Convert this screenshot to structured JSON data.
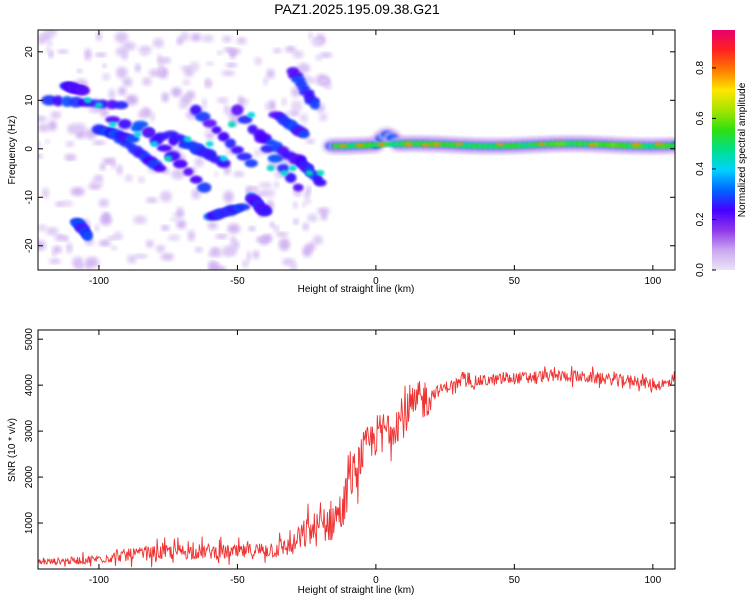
{
  "title": "PAZ1.2025.195.09.38.G21",
  "chart_data": [
    {
      "type": "heatmap",
      "xlabel": "Height of straight line (km)",
      "ylabel": "Frequency (Hz)",
      "xlim": [
        -122,
        108
      ],
      "ylim": [
        -25,
        24.5
      ],
      "xticks": [
        -100,
        -50,
        0,
        50,
        100
      ],
      "yticks": [
        -20,
        -10,
        0,
        10,
        20
      ],
      "colorbar": {
        "label": "Normalized spectral amplitude",
        "range": [
          0.0,
          0.95
        ],
        "ticks": [
          0.0,
          0.2,
          0.4,
          0.6,
          0.8
        ],
        "colors": [
          "#ece3f7",
          "#c9a6f0",
          "#8f36ea",
          "#4400ff",
          "#0066ff",
          "#00d2ff",
          "#00e08c",
          "#2fe010",
          "#a6e400",
          "#ffe600",
          "#ff7a00",
          "#ff2020",
          "#e8006e"
        ]
      },
      "features": [
        {
          "x": [
            -115,
            -90
          ],
          "y": [
            8,
            12
          ],
          "amplitude": 0.3,
          "description_of_region": "scattered blobs"
        },
        {
          "x": [
            -90,
            -20
          ],
          "y": [
            -10,
            8
          ],
          "amplitude": 0.35
        },
        {
          "x": [
            -15,
            108
          ],
          "y": [
            -0.5,
            1.5
          ],
          "amplitude": 0.5
        }
      ]
    },
    {
      "type": "line",
      "xlabel": "Height of straight line (km)",
      "ylabel": "SNR (10 * v/v)",
      "xlim": [
        -122,
        108
      ],
      "ylim": [
        0,
        5200
      ],
      "xticks": [
        -100,
        -50,
        0,
        50,
        100
      ],
      "yticks": [
        1000,
        2000,
        3000,
        4000,
        5000
      ],
      "line_color": "#ee3333",
      "series": [
        {
          "x": [
            -122,
            -110,
            -100,
            -90,
            -80,
            -70,
            -60,
            -50,
            -40,
            -30,
            -25,
            -20,
            -15,
            -12,
            -10,
            -5,
            0,
            5,
            10,
            15,
            20,
            25,
            30,
            40,
            50,
            60,
            70,
            80,
            90,
            95,
            100,
            108
          ],
          "values": [
            150,
            180,
            220,
            300,
            350,
            380,
            380,
            360,
            420,
            500,
            800,
            900,
            1100,
            1300,
            1800,
            2500,
            2900,
            3100,
            3300,
            3600,
            3800,
            3950,
            4050,
            4100,
            4150,
            4200,
            4200,
            4150,
            4100,
            4100,
            4000,
            4050
          ]
        }
      ]
    }
  ]
}
